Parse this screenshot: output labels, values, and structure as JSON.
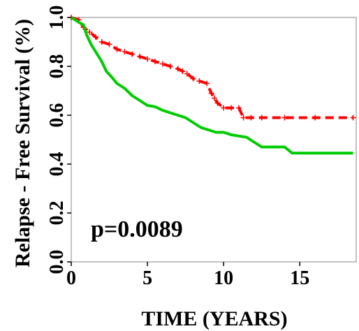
{
  "chart_data": {
    "type": "line",
    "title": "",
    "xlabel": "TIME (YEARS)",
    "ylabel": "Relapse - Free Survival (%)",
    "xlim": [
      0,
      18.7
    ],
    "ylim": [
      0,
      1.0
    ],
    "x_ticks": [
      "0",
      "5",
      "10",
      "15"
    ],
    "y_ticks": [
      "0.0",
      "0.2",
      "0.4",
      "0.6",
      "0.8",
      "1.0"
    ],
    "grid": false,
    "annotation": "p=0.0089",
    "series": [
      {
        "color": "#ff0000",
        "style": "dashed",
        "marker": "plus",
        "x": [
          0,
          0.5,
          0.8,
          1.2,
          1.6,
          2.0,
          2.5,
          3.0,
          3.5,
          4.0,
          4.5,
          5.0,
          5.5,
          6.0,
          6.5,
          7.0,
          7.3,
          7.6,
          8.0,
          8.4,
          8.9,
          9.2,
          9.4,
          9.6,
          10.0,
          10.5,
          11.0,
          11.3,
          11.8,
          12.5,
          14.0,
          16.0,
          18.5
        ],
        "y": [
          1.0,
          0.99,
          0.96,
          0.94,
          0.92,
          0.9,
          0.89,
          0.87,
          0.86,
          0.85,
          0.84,
          0.83,
          0.82,
          0.81,
          0.8,
          0.79,
          0.78,
          0.77,
          0.75,
          0.74,
          0.73,
          0.69,
          0.67,
          0.65,
          0.63,
          0.63,
          0.63,
          0.59,
          0.59,
          0.59,
          0.59,
          0.59,
          0.59
        ]
      },
      {
        "color": "#00cc00",
        "style": "solid",
        "marker": "none",
        "x": [
          0,
          0.5,
          0.8,
          1.0,
          1.3,
          1.6,
          2.0,
          2.3,
          2.6,
          3.0,
          3.5,
          4.0,
          4.5,
          5.0,
          5.5,
          6.0,
          6.5,
          7.0,
          7.5,
          8.0,
          8.5,
          9.0,
          9.5,
          10.0,
          10.5,
          11.0,
          11.5,
          12.0,
          12.5,
          13.0,
          14.0,
          14.5,
          16.0,
          18.5
        ],
        "y": [
          1.0,
          0.98,
          0.97,
          0.93,
          0.89,
          0.86,
          0.82,
          0.78,
          0.76,
          0.73,
          0.71,
          0.68,
          0.66,
          0.64,
          0.635,
          0.62,
          0.61,
          0.6,
          0.59,
          0.57,
          0.55,
          0.54,
          0.53,
          0.53,
          0.52,
          0.515,
          0.51,
          0.49,
          0.47,
          0.47,
          0.47,
          0.445,
          0.445,
          0.445
        ]
      }
    ]
  }
}
